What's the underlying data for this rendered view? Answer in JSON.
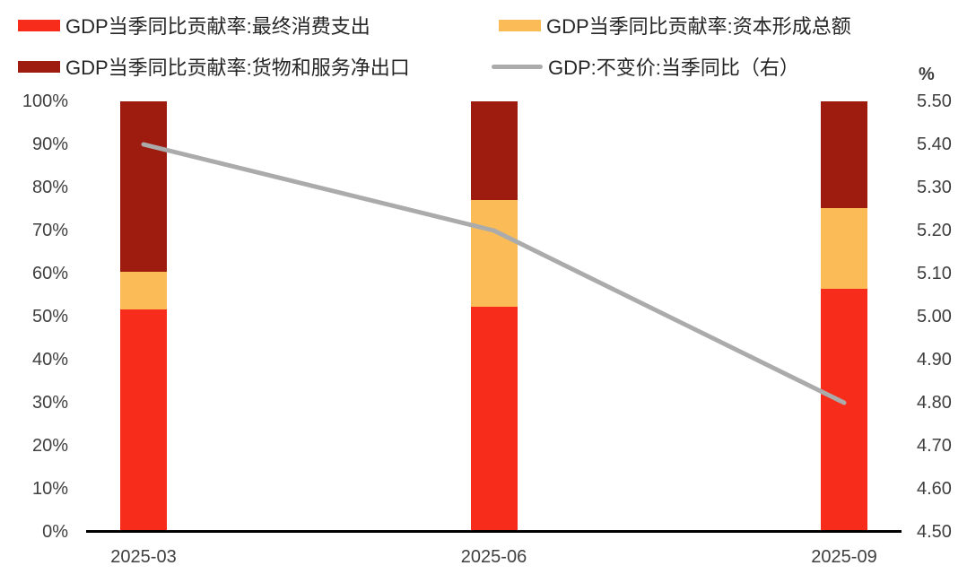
{
  "chart_data": {
    "type": "bar",
    "subtype": "stacked-percent-columns-with-line",
    "title": "",
    "categories": [
      "2025-03",
      "2025-06",
      "2025-09"
    ],
    "series": [
      {
        "name": "GDP当季同比贡献率:最终消费支出",
        "type": "bar",
        "axis": "left",
        "color": "#F72C1B",
        "values": [
          51.7,
          52.3,
          56.4
        ]
      },
      {
        "name": "GDP当季同比贡献率:资本形成总额",
        "type": "bar",
        "axis": "left",
        "color": "#FBBC58",
        "values": [
          8.7,
          24.7,
          18.8
        ]
      },
      {
        "name": "GDP当季同比贡献率:货物和服务净出口",
        "type": "bar",
        "axis": "left",
        "color": "#9E1B10",
        "values": [
          39.6,
          23.0,
          24.8
        ]
      },
      {
        "name": "GDP:不变价:当季同比（右）",
        "type": "line",
        "axis": "right",
        "color": "#ABABAB",
        "values": [
          5.4,
          5.2,
          4.8
        ]
      }
    ],
    "left_axis": {
      "min": 0,
      "max": 100,
      "step": 10,
      "format": "percent",
      "ticks": [
        "100%",
        "90%",
        "80%",
        "70%",
        "60%",
        "50%",
        "40%",
        "30%",
        "20%",
        "10%",
        "0%"
      ]
    },
    "right_axis": {
      "min": 4.5,
      "max": 5.5,
      "step": 0.1,
      "unit": "%",
      "ticks": [
        "5.50",
        "5.40",
        "5.30",
        "5.20",
        "5.10",
        "5.00",
        "4.90",
        "4.80",
        "4.70",
        "4.60",
        "4.50"
      ]
    },
    "legend_position": "top",
    "grid": false,
    "colors": {
      "axis_line": "#000000",
      "tick_text": "#3F3F3F",
      "legend_text": "#262626",
      "background": "#FFFFFF"
    }
  }
}
